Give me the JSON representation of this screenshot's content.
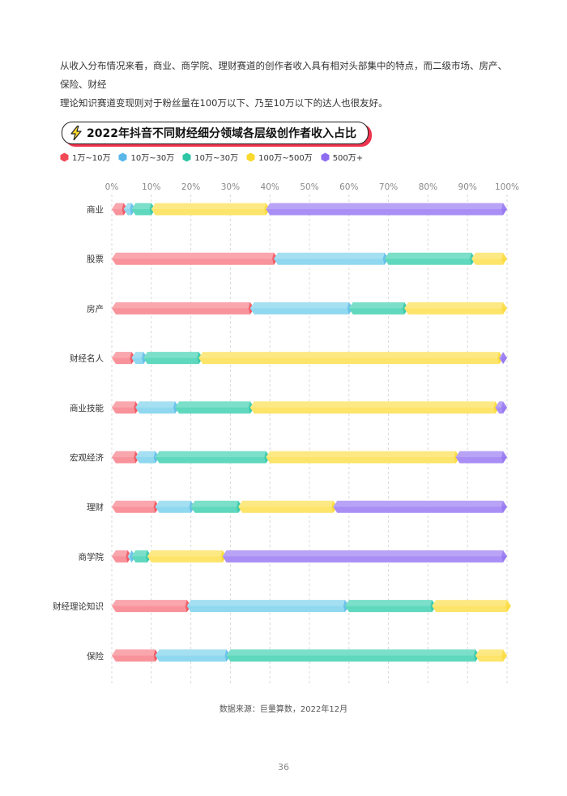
{
  "intro": {
    "line1": "从收入分布情况来看，商业、商学院、理财赛道的创作者收入具有相对头部集中的特点，而二级市场、房产、保险、财经",
    "line2": "理论知识赛道变现则对于粉丝量在100万以下、乃至10万以下的达人也很友好。"
  },
  "chart_data": {
    "type": "bar",
    "orientation": "horizontal",
    "stacked": true,
    "title": "2022年抖音不同财经细分领域各层级创作者收入占比",
    "categories": [
      "商业",
      "股票",
      "房产",
      "财经名人",
      "商业技能",
      "宏观经济",
      "理财",
      "商学院",
      "财经理论知识",
      "保险"
    ],
    "x_ticks": [
      "0%",
      "10%",
      "20%",
      "30%",
      "40%",
      "50%",
      "60%",
      "70%",
      "80%",
      "90%",
      "100%"
    ],
    "xlim": [
      0,
      100
    ],
    "grid": true,
    "legend_position": "top-left",
    "series": [
      {
        "name": "1万~10万",
        "color": "#f8939b",
        "values": [
          3,
          41,
          35,
          5,
          6,
          6,
          11,
          4,
          19,
          11
        ]
      },
      {
        "name": "10万~30万",
        "color": "#90d8ef",
        "values": [
          2,
          28,
          25,
          3,
          10,
          5,
          9,
          1,
          40,
          18
        ]
      },
      {
        "name": "10万~30万",
        "color": "#5fd8be",
        "values": [
          5,
          22,
          14,
          14,
          19,
          28,
          12,
          4,
          22,
          63
        ]
      },
      {
        "name": "100万~500万",
        "color": "#fde46a",
        "values": [
          29,
          9,
          26,
          76,
          62,
          48,
          24,
          19,
          20,
          8
        ]
      },
      {
        "name": "500万+",
        "color": "#a98ff5",
        "values": [
          61,
          0,
          0,
          2,
          3,
          13,
          44,
          72,
          0,
          0
        ]
      }
    ],
    "legend_colors": [
      "#ef4a55",
      "#5ab8e8",
      "#2ec7a5",
      "#fad92e",
      "#8e6cf1"
    ]
  },
  "source": "数据来源：巨量算数，2022年12月",
  "page_number": "36"
}
